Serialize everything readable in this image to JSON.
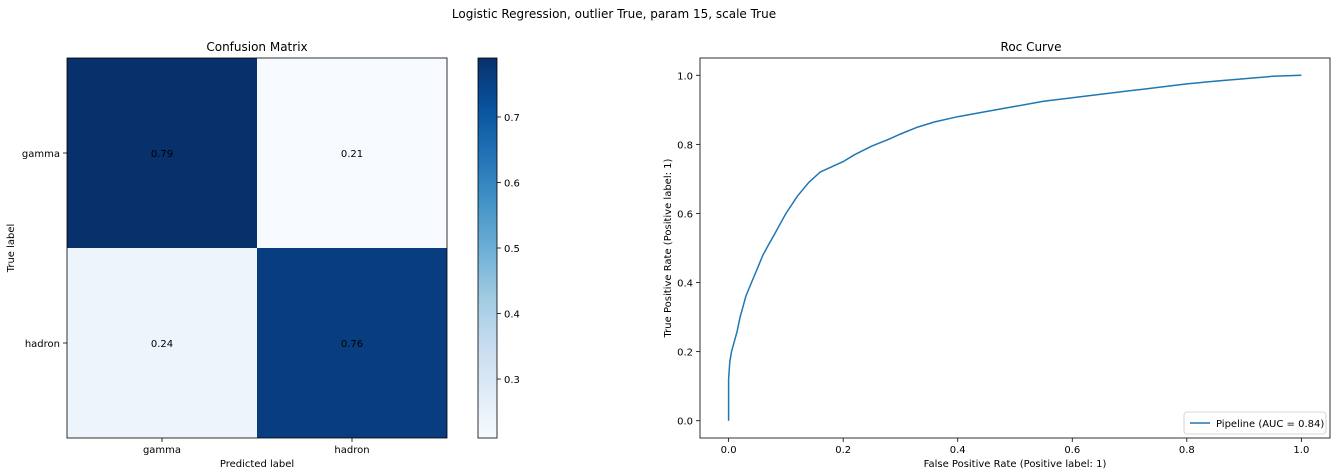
{
  "figure": {
    "suptitle": "Logistic Regression, outlier True, param 15, scale True"
  },
  "chart_data": [
    {
      "type": "heatmap",
      "title": "Confusion Matrix",
      "xlabel": "Predicted label",
      "ylabel": "True label",
      "x_categories": [
        "gamma",
        "hadron"
      ],
      "y_categories": [
        "gamma",
        "hadron"
      ],
      "values": [
        [
          0.79,
          0.21
        ],
        [
          0.24,
          0.76
        ]
      ],
      "value_labels": [
        [
          "0.79",
          "0.21"
        ],
        [
          "0.24",
          "0.76"
        ]
      ],
      "colormap": "Blues",
      "colorbar": {
        "range": [
          0.21,
          0.79
        ],
        "ticks": [
          0.3,
          0.4,
          0.5,
          0.6,
          0.7
        ],
        "tick_labels": [
          "0.3",
          "0.4",
          "0.5",
          "0.6",
          "0.7"
        ]
      },
      "text_colors": {
        "dark_cell": "#ffffff",
        "light_cell": "#08306b"
      }
    },
    {
      "type": "line",
      "title": "Roc Curve",
      "xlabel": "False Positive Rate (Positive label: 1)",
      "ylabel": "True Positive Rate (Positive label: 1)",
      "xlim": [
        -0.05,
        1.05
      ],
      "ylim": [
        -0.05,
        1.05
      ],
      "x_ticks": [
        0.0,
        0.2,
        0.4,
        0.6,
        0.8,
        1.0
      ],
      "x_tick_labels": [
        "0.0",
        "0.2",
        "0.4",
        "0.6",
        "0.8",
        "1.0"
      ],
      "y_ticks": [
        0.0,
        0.2,
        0.4,
        0.6,
        0.8,
        1.0
      ],
      "y_tick_labels": [
        "0.0",
        "0.2",
        "0.4",
        "0.6",
        "0.8",
        "1.0"
      ],
      "grid": false,
      "legend_position": "lower-right",
      "series": [
        {
          "name": "Pipeline (AUC = 0.84)",
          "color": "#1f77b4",
          "x": [
            0.0,
            0.0,
            0.002,
            0.005,
            0.01,
            0.015,
            0.02,
            0.025,
            0.03,
            0.04,
            0.05,
            0.06,
            0.07,
            0.08,
            0.09,
            0.1,
            0.12,
            0.14,
            0.16,
            0.18,
            0.2,
            0.22,
            0.25,
            0.28,
            0.3,
            0.33,
            0.36,
            0.4,
            0.45,
            0.5,
            0.55,
            0.6,
            0.65,
            0.7,
            0.75,
            0.8,
            0.85,
            0.9,
            0.95,
            1.0
          ],
          "y": [
            0.0,
            0.12,
            0.17,
            0.2,
            0.23,
            0.26,
            0.3,
            0.33,
            0.36,
            0.4,
            0.44,
            0.48,
            0.51,
            0.54,
            0.57,
            0.6,
            0.65,
            0.69,
            0.72,
            0.735,
            0.75,
            0.77,
            0.795,
            0.815,
            0.83,
            0.85,
            0.865,
            0.88,
            0.895,
            0.91,
            0.925,
            0.935,
            0.945,
            0.955,
            0.965,
            0.975,
            0.983,
            0.99,
            0.997,
            1.0
          ]
        }
      ]
    }
  ]
}
